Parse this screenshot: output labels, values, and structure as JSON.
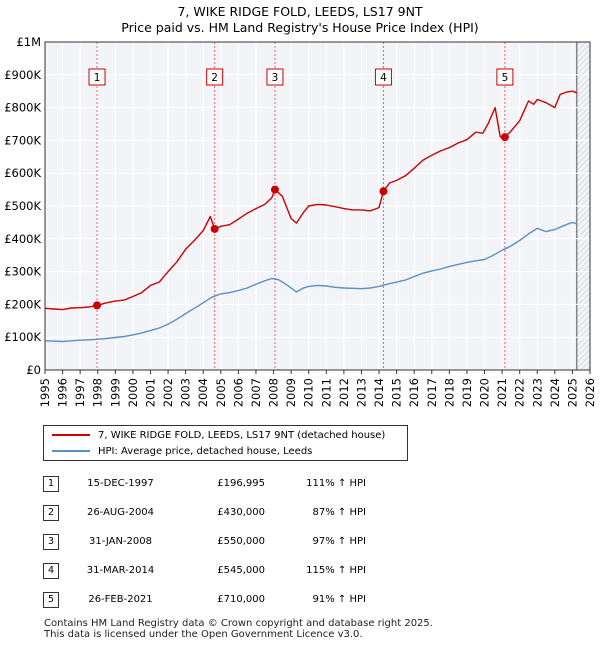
{
  "chart_data": {
    "type": "line",
    "title": "7, WIKE RIDGE FOLD, LEEDS, LS17 9NT",
    "subtitle": "Price paid vs. HM Land Registry's House Price Index (HPI)",
    "x_ticks": [
      "1995",
      "1996",
      "1997",
      "1998",
      "1999",
      "2000",
      "2001",
      "2002",
      "2003",
      "2004",
      "2005",
      "2006",
      "2007",
      "2008",
      "2009",
      "2010",
      "2011",
      "2012",
      "2013",
      "2014",
      "2015",
      "2016",
      "2017",
      "2018",
      "2019",
      "2020",
      "2021",
      "2022",
      "2023",
      "2024",
      "2025",
      "2026"
    ],
    "xlim": [
      1995,
      2026
    ],
    "y_ticks": [
      {
        "value": 0,
        "label": "£0"
      },
      {
        "value": 100000,
        "label": "£100K"
      },
      {
        "value": 200000,
        "label": "£200K"
      },
      {
        "value": 300000,
        "label": "£300K"
      },
      {
        "value": 400000,
        "label": "£400K"
      },
      {
        "value": 500000,
        "label": "£500K"
      },
      {
        "value": 600000,
        "label": "£600K"
      },
      {
        "value": 700000,
        "label": "£700K"
      },
      {
        "value": 800000,
        "label": "£800K"
      },
      {
        "value": 900000,
        "label": "£900K"
      },
      {
        "value": 1000000,
        "label": "£1M"
      }
    ],
    "ylim": [
      0,
      1000000
    ],
    "grid": true,
    "data_end_year": 2025.25,
    "series": [
      {
        "name": "7, WIKE RIDGE FOLD, LEEDS, LS17 9NT (detached house)",
        "color": "#cc0000",
        "points": [
          [
            1995.0,
            188000
          ],
          [
            1995.5,
            186000
          ],
          [
            1996.0,
            184000
          ],
          [
            1996.5,
            189000
          ],
          [
            1997.0,
            190000
          ],
          [
            1997.5,
            192000
          ],
          [
            1997.96,
            196995
          ],
          [
            1998.5,
            205000
          ],
          [
            1999.0,
            210000
          ],
          [
            1999.5,
            213000
          ],
          [
            2000.0,
            224000
          ],
          [
            2000.5,
            236000
          ],
          [
            2001.0,
            258000
          ],
          [
            2001.5,
            268000
          ],
          [
            2002.0,
            300000
          ],
          [
            2002.5,
            330000
          ],
          [
            2003.0,
            368000
          ],
          [
            2003.5,
            395000
          ],
          [
            2004.0,
            425000
          ],
          [
            2004.4,
            468000
          ],
          [
            2004.65,
            430000
          ],
          [
            2005.0,
            438000
          ],
          [
            2005.5,
            443000
          ],
          [
            2006.0,
            460000
          ],
          [
            2006.5,
            478000
          ],
          [
            2007.0,
            492000
          ],
          [
            2007.5,
            505000
          ],
          [
            2007.9,
            525000
          ],
          [
            2008.08,
            550000
          ],
          [
            2008.5,
            530000
          ],
          [
            2009.0,
            462000
          ],
          [
            2009.3,
            448000
          ],
          [
            2009.7,
            480000
          ],
          [
            2010.0,
            500000
          ],
          [
            2010.5,
            505000
          ],
          [
            2011.0,
            503000
          ],
          [
            2011.5,
            498000
          ],
          [
            2012.0,
            492000
          ],
          [
            2012.5,
            488000
          ],
          [
            2013.0,
            488000
          ],
          [
            2013.5,
            485000
          ],
          [
            2014.0,
            495000
          ],
          [
            2014.25,
            545000
          ],
          [
            2014.6,
            570000
          ],
          [
            2015.0,
            578000
          ],
          [
            2015.5,
            592000
          ],
          [
            2016.0,
            615000
          ],
          [
            2016.5,
            640000
          ],
          [
            2017.0,
            655000
          ],
          [
            2017.5,
            668000
          ],
          [
            2018.0,
            678000
          ],
          [
            2018.5,
            692000
          ],
          [
            2019.0,
            702000
          ],
          [
            2019.5,
            725000
          ],
          [
            2019.9,
            722000
          ],
          [
            2020.2,
            750000
          ],
          [
            2020.6,
            800000
          ],
          [
            2020.9,
            710000
          ],
          [
            2021.16,
            710000
          ],
          [
            2021.5,
            728000
          ],
          [
            2022.0,
            760000
          ],
          [
            2022.5,
            820000
          ],
          [
            2022.8,
            810000
          ],
          [
            2023.0,
            825000
          ],
          [
            2023.5,
            815000
          ],
          [
            2024.0,
            800000
          ],
          [
            2024.3,
            840000
          ],
          [
            2024.7,
            848000
          ],
          [
            2025.0,
            850000
          ],
          [
            2025.25,
            845000
          ]
        ]
      },
      {
        "name": "HPI: Average price, detached house, Leeds",
        "color": "#5b8fc9",
        "points": [
          [
            1995.0,
            89000
          ],
          [
            1995.5,
            88000
          ],
          [
            1996.0,
            87000
          ],
          [
            1996.5,
            89000
          ],
          [
            1997.0,
            91000
          ],
          [
            1997.5,
            92000
          ],
          [
            1998.0,
            94000
          ],
          [
            1998.5,
            96000
          ],
          [
            1999.0,
            99000
          ],
          [
            1999.5,
            102000
          ],
          [
            2000.0,
            107000
          ],
          [
            2000.5,
            113000
          ],
          [
            2001.0,
            120000
          ],
          [
            2001.5,
            128000
          ],
          [
            2002.0,
            140000
          ],
          [
            2002.5,
            155000
          ],
          [
            2003.0,
            172000
          ],
          [
            2003.5,
            188000
          ],
          [
            2004.0,
            205000
          ],
          [
            2004.5,
            222000
          ],
          [
            2005.0,
            232000
          ],
          [
            2005.5,
            236000
          ],
          [
            2006.0,
            242000
          ],
          [
            2006.5,
            250000
          ],
          [
            2007.0,
            262000
          ],
          [
            2007.5,
            272000
          ],
          [
            2007.9,
            279000
          ],
          [
            2008.3,
            275000
          ],
          [
            2008.8,
            258000
          ],
          [
            2009.3,
            238000
          ],
          [
            2009.7,
            250000
          ],
          [
            2010.0,
            255000
          ],
          [
            2010.5,
            258000
          ],
          [
            2011.0,
            256000
          ],
          [
            2011.5,
            252000
          ],
          [
            2012.0,
            250000
          ],
          [
            2012.5,
            249000
          ],
          [
            2013.0,
            248000
          ],
          [
            2013.5,
            250000
          ],
          [
            2014.0,
            255000
          ],
          [
            2014.5,
            262000
          ],
          [
            2015.0,
            268000
          ],
          [
            2015.5,
            274000
          ],
          [
            2016.0,
            285000
          ],
          [
            2016.5,
            295000
          ],
          [
            2017.0,
            302000
          ],
          [
            2017.5,
            308000
          ],
          [
            2018.0,
            316000
          ],
          [
            2018.5,
            322000
          ],
          [
            2019.0,
            328000
          ],
          [
            2019.5,
            333000
          ],
          [
            2020.0,
            337000
          ],
          [
            2020.5,
            350000
          ],
          [
            2021.0,
            365000
          ],
          [
            2021.5,
            378000
          ],
          [
            2022.0,
            395000
          ],
          [
            2022.5,
            415000
          ],
          [
            2023.0,
            432000
          ],
          [
            2023.5,
            422000
          ],
          [
            2024.0,
            428000
          ],
          [
            2024.5,
            440000
          ],
          [
            2025.0,
            450000
          ],
          [
            2025.25,
            446000
          ]
        ]
      }
    ],
    "sales": [
      {
        "num": "1",
        "year": 1997.96,
        "price": 196995
      },
      {
        "num": "2",
        "year": 2004.65,
        "price": 430000
      },
      {
        "num": "3",
        "year": 2008.08,
        "price": 550000
      },
      {
        "num": "4",
        "year": 2014.25,
        "price": 545000
      },
      {
        "num": "5",
        "year": 2021.16,
        "price": 710000
      }
    ]
  },
  "legend": {
    "property_label": "7, WIKE RIDGE FOLD, LEEDS, LS17 9NT (detached house)",
    "hpi_label": "HPI: Average price, detached house, Leeds"
  },
  "sales_table": [
    {
      "num": "1",
      "date": "15-DEC-1997",
      "price": "£196,995",
      "hpi": "111% ↑ HPI"
    },
    {
      "num": "2",
      "date": "26-AUG-2004",
      "price": "£430,000",
      "hpi": "87% ↑ HPI"
    },
    {
      "num": "3",
      "date": "31-JAN-2008",
      "price": "£550,000",
      "hpi": "97% ↑ HPI"
    },
    {
      "num": "4",
      "date": "31-MAR-2014",
      "price": "£545,000",
      "hpi": "115% ↑ HPI"
    },
    {
      "num": "5",
      "date": "26-FEB-2021",
      "price": "£710,000",
      "hpi": "91% ↑ HPI"
    }
  ],
  "footer": {
    "line1": "Contains HM Land Registry data © Crown copyright and database right 2025.",
    "line2": "This data is licensed under the Open Government Licence v3.0."
  }
}
